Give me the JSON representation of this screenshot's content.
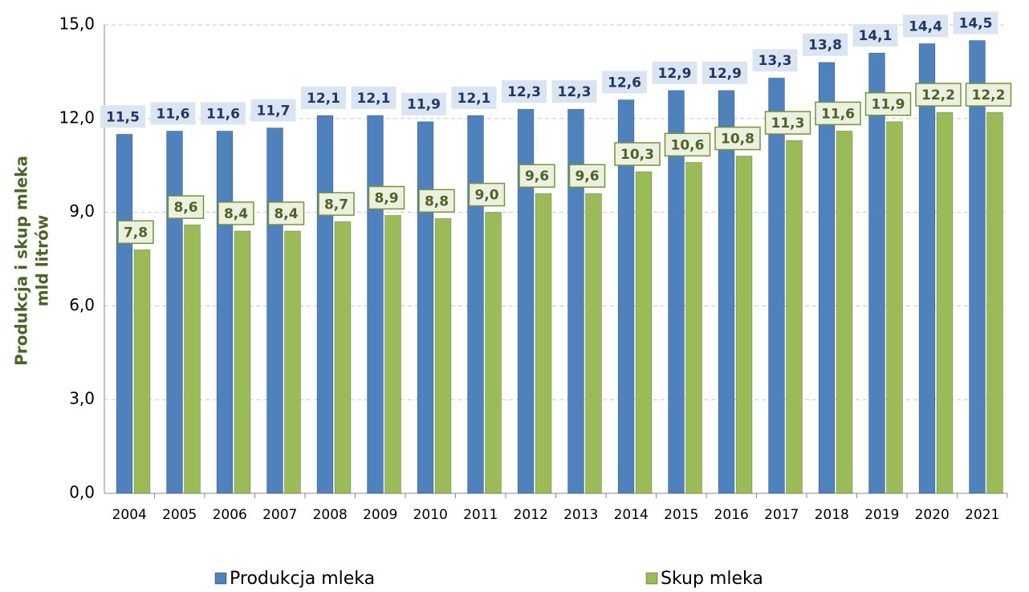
{
  "chart_data": {
    "type": "bar",
    "y_label": [
      "Produkcja i skup mleka",
      "mld litrów"
    ],
    "categories": [
      "2004",
      "2005",
      "2006",
      "2007",
      "2008",
      "2009",
      "2010",
      "2011",
      "2012",
      "2013",
      "2014",
      "2015",
      "2016",
      "2017",
      "2018",
      "2019",
      "2020",
      "2021"
    ],
    "series": [
      {
        "name": "Produkcja mleka",
        "color": "#4f81bd",
        "values": [
          11.5,
          11.6,
          11.6,
          11.7,
          12.1,
          12.1,
          11.9,
          12.1,
          12.3,
          12.3,
          12.6,
          12.9,
          12.9,
          13.3,
          13.8,
          14.1,
          14.4,
          14.5
        ],
        "value_labels": [
          "11,5",
          "11,6",
          "11,6",
          "11,7",
          "12,1",
          "12,1",
          "11,9",
          "12,1",
          "12,3",
          "12,3",
          "12,6",
          "12,9",
          "12,9",
          "13,3",
          "13,8",
          "14,1",
          "14,4",
          "14,5"
        ]
      },
      {
        "name": "Skup mleka",
        "color": "#9bbb59",
        "values": [
          7.8,
          8.6,
          8.4,
          8.4,
          8.7,
          8.9,
          8.8,
          9.0,
          9.6,
          9.6,
          10.3,
          10.6,
          10.8,
          11.3,
          11.6,
          11.9,
          12.2,
          12.2
        ],
        "value_labels": [
          "7,8",
          "8,6",
          "8,4",
          "8,4",
          "8,7",
          "8,9",
          "8,8",
          "9,0",
          "9,6",
          "9,6",
          "10,3",
          "10,6",
          "10,8",
          "11,3",
          "11,6",
          "11,9",
          "12,2",
          "12,2"
        ]
      }
    ],
    "ylim": [
      0,
      15
    ],
    "yticks": [
      {
        "value": 0,
        "label": "0,0"
      },
      {
        "value": 3,
        "label": "3,0"
      },
      {
        "value": 6,
        "label": "6,0"
      },
      {
        "value": 9,
        "label": "9,0"
      },
      {
        "value": 12,
        "label": "12,0"
      },
      {
        "value": 15,
        "label": "15,0"
      }
    ],
    "grid": true,
    "legend": "bottom"
  }
}
